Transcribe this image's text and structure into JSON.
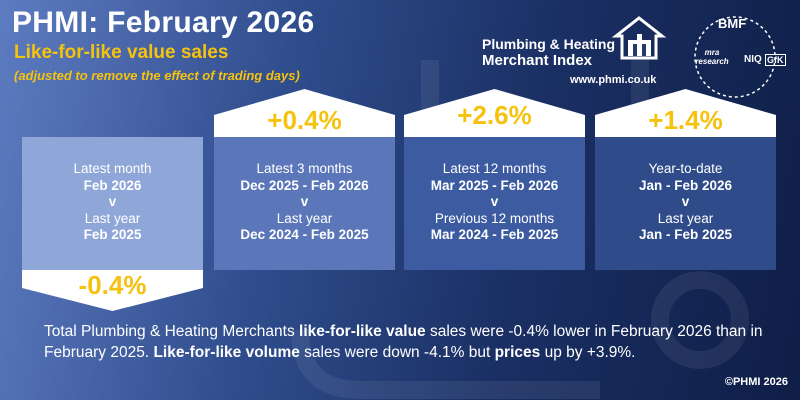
{
  "header": {
    "title": "PHMI: February 2026",
    "subtitle": "Like-for-like value sales",
    "note": "(adjusted to remove the effect of trading days)"
  },
  "logo": {
    "line1": "Plumbing & Heating",
    "line2": "Merchant Index",
    "url": "www.phmi.co.uk"
  },
  "partners": {
    "bmf": "BMF",
    "mra": "mra research",
    "niq": "NIQ",
    "gfk": "GfK"
  },
  "cards": [
    {
      "label": "Latest month",
      "period": "Feb 2026",
      "v": "v",
      "compare_label": "Last year",
      "compare_period": "Feb 2025",
      "change": "-0.4%"
    },
    {
      "label": "Latest 3 months",
      "period": "Dec 2025 - Feb 2026",
      "v": "v",
      "compare_label": "Last year",
      "compare_period": "Dec 2024 - Feb 2025",
      "change": "+0.4%"
    },
    {
      "label": "Latest 12 months",
      "period": "Mar 2025 - Feb 2026",
      "v": "v",
      "compare_label": "Previous 12 months",
      "compare_period": "Mar 2024 - Feb 2025",
      "change": "+2.6%"
    },
    {
      "label": "Year-to-date",
      "period": "Jan - Feb 2026",
      "v": "v",
      "compare_label": "Last year",
      "compare_period": "Jan - Feb 2025",
      "change": "+1.4%"
    }
  ],
  "summary": {
    "p1": "Total Plumbing & Heating Merchants ",
    "b1": "like-for-like value",
    "p2": " sales were -0.4% lower in February 2026 than in February 2025. ",
    "b2": "Like-for-like volume",
    "p3": " sales were down -4.1% but ",
    "b3": "prices",
    "p4": " up by +3.9%."
  },
  "copyright": "©PHMI 2026",
  "colors": {
    "accent": "#f5c20e",
    "card1": "#8fa6d8",
    "card2": "#5b77b9",
    "card3": "#3c5ba1",
    "card4": "#2f4b8a"
  }
}
